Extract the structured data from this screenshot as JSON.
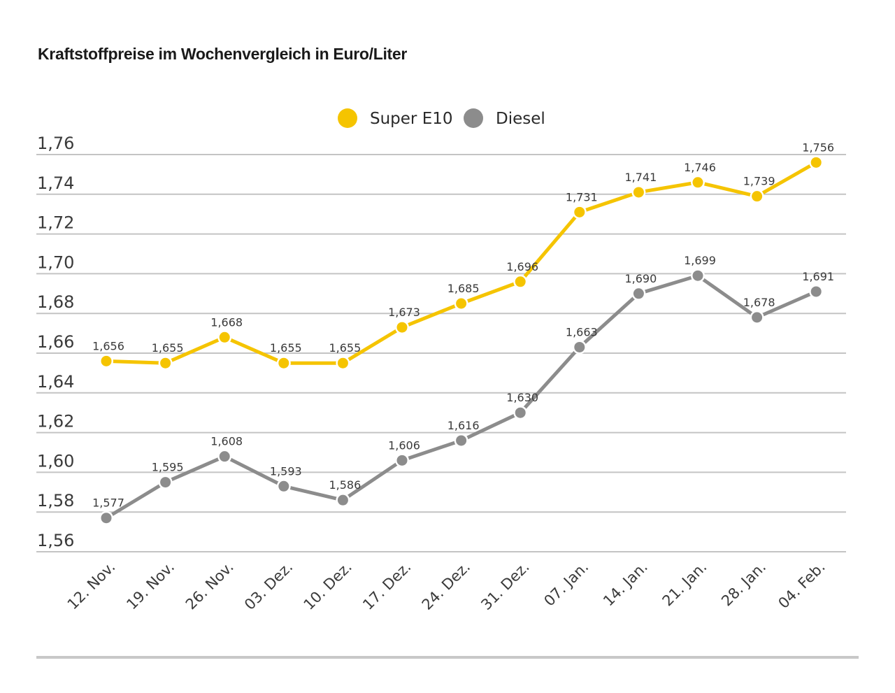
{
  "chart_data": {
    "type": "line",
    "title": "Kraftstoffpreise im Wochenvergleich in Euro/Liter",
    "xlabel": "",
    "ylabel": "",
    "categories": [
      "12. Nov.",
      "19. Nov.",
      "26. Nov.",
      "03. Dez.",
      "10. Dez.",
      "17. Dez.",
      "24. Dez.",
      "31. Dez.",
      "07. Jan.",
      "14. Jan.",
      "21. Jan.",
      "28. Jan.",
      "04. Feb."
    ],
    "ylim": [
      1.56,
      1.76
    ],
    "yticks": [
      1.56,
      1.58,
      1.6,
      1.62,
      1.64,
      1.66,
      1.68,
      1.7,
      1.72,
      1.74,
      1.76
    ],
    "ytick_labels": [
      "1,56",
      "1,58",
      "1,60",
      "1,62",
      "1,64",
      "1,66",
      "1,68",
      "1,70",
      "1,72",
      "1,74",
      "1,76"
    ],
    "grid": true,
    "legend_position": "top-center",
    "series": [
      {
        "name": "Super E10",
        "color": "#f5c400",
        "values": [
          1.656,
          1.655,
          1.668,
          1.655,
          1.655,
          1.673,
          1.685,
          1.696,
          1.731,
          1.741,
          1.746,
          1.739,
          1.756
        ],
        "labels": [
          "1,656",
          "1,655",
          "1,668",
          "1,655",
          "1,655",
          "1,673",
          "1,685",
          "1,696",
          "1,731",
          "1,741",
          "1,746",
          "1,739",
          "1,756"
        ]
      },
      {
        "name": "Diesel",
        "color": "#8c8c8c",
        "values": [
          1.577,
          1.595,
          1.608,
          1.593,
          1.586,
          1.606,
          1.616,
          1.63,
          1.663,
          1.69,
          1.699,
          1.678,
          1.691
        ],
        "labels": [
          "1,577",
          "1,595",
          "1,608",
          "1,593",
          "1,586",
          "1,606",
          "1,616",
          "1,630",
          "1,663",
          "1,690",
          "1,699",
          "1,678",
          "1,691"
        ]
      }
    ]
  }
}
